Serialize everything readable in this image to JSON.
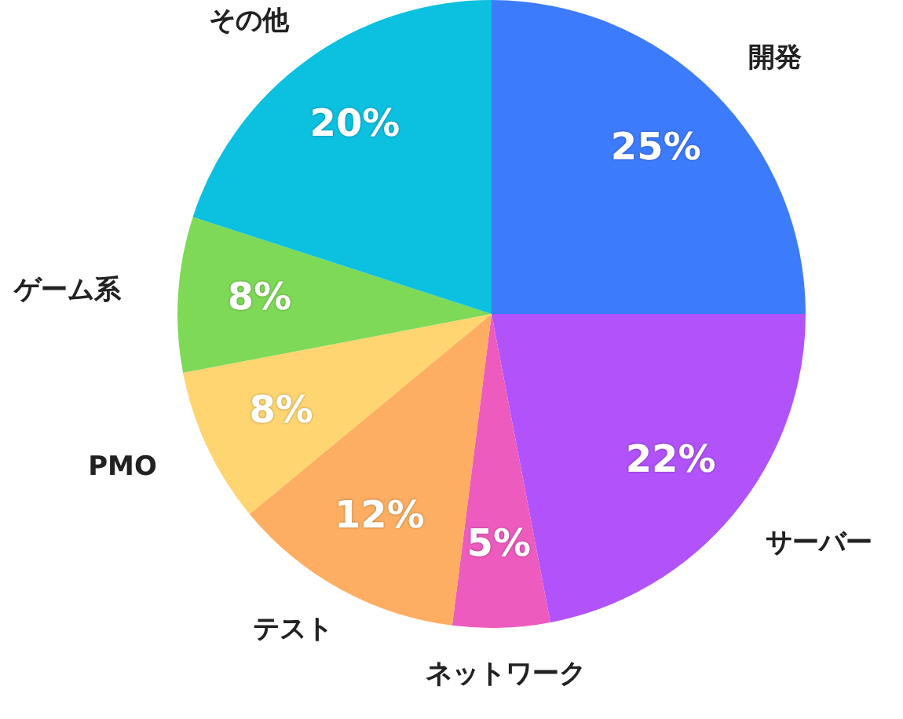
{
  "chart_data": {
    "type": "pie",
    "categories": [
      "開発",
      "サーバー",
      "ネットワーク",
      "テスト",
      "PMO",
      "ゲーム系",
      "その他"
    ],
    "values": [
      25,
      22,
      5,
      12,
      8,
      8,
      20
    ],
    "colors": [
      "#3d7bfd",
      "#b152fb",
      "#ee5bbf",
      "#fdae62",
      "#fed570",
      "#7ed957",
      "#0cc0df"
    ],
    "value_labels": [
      "25%",
      "22%",
      "5%",
      "12%",
      "8%",
      "8%",
      "20%"
    ]
  }
}
